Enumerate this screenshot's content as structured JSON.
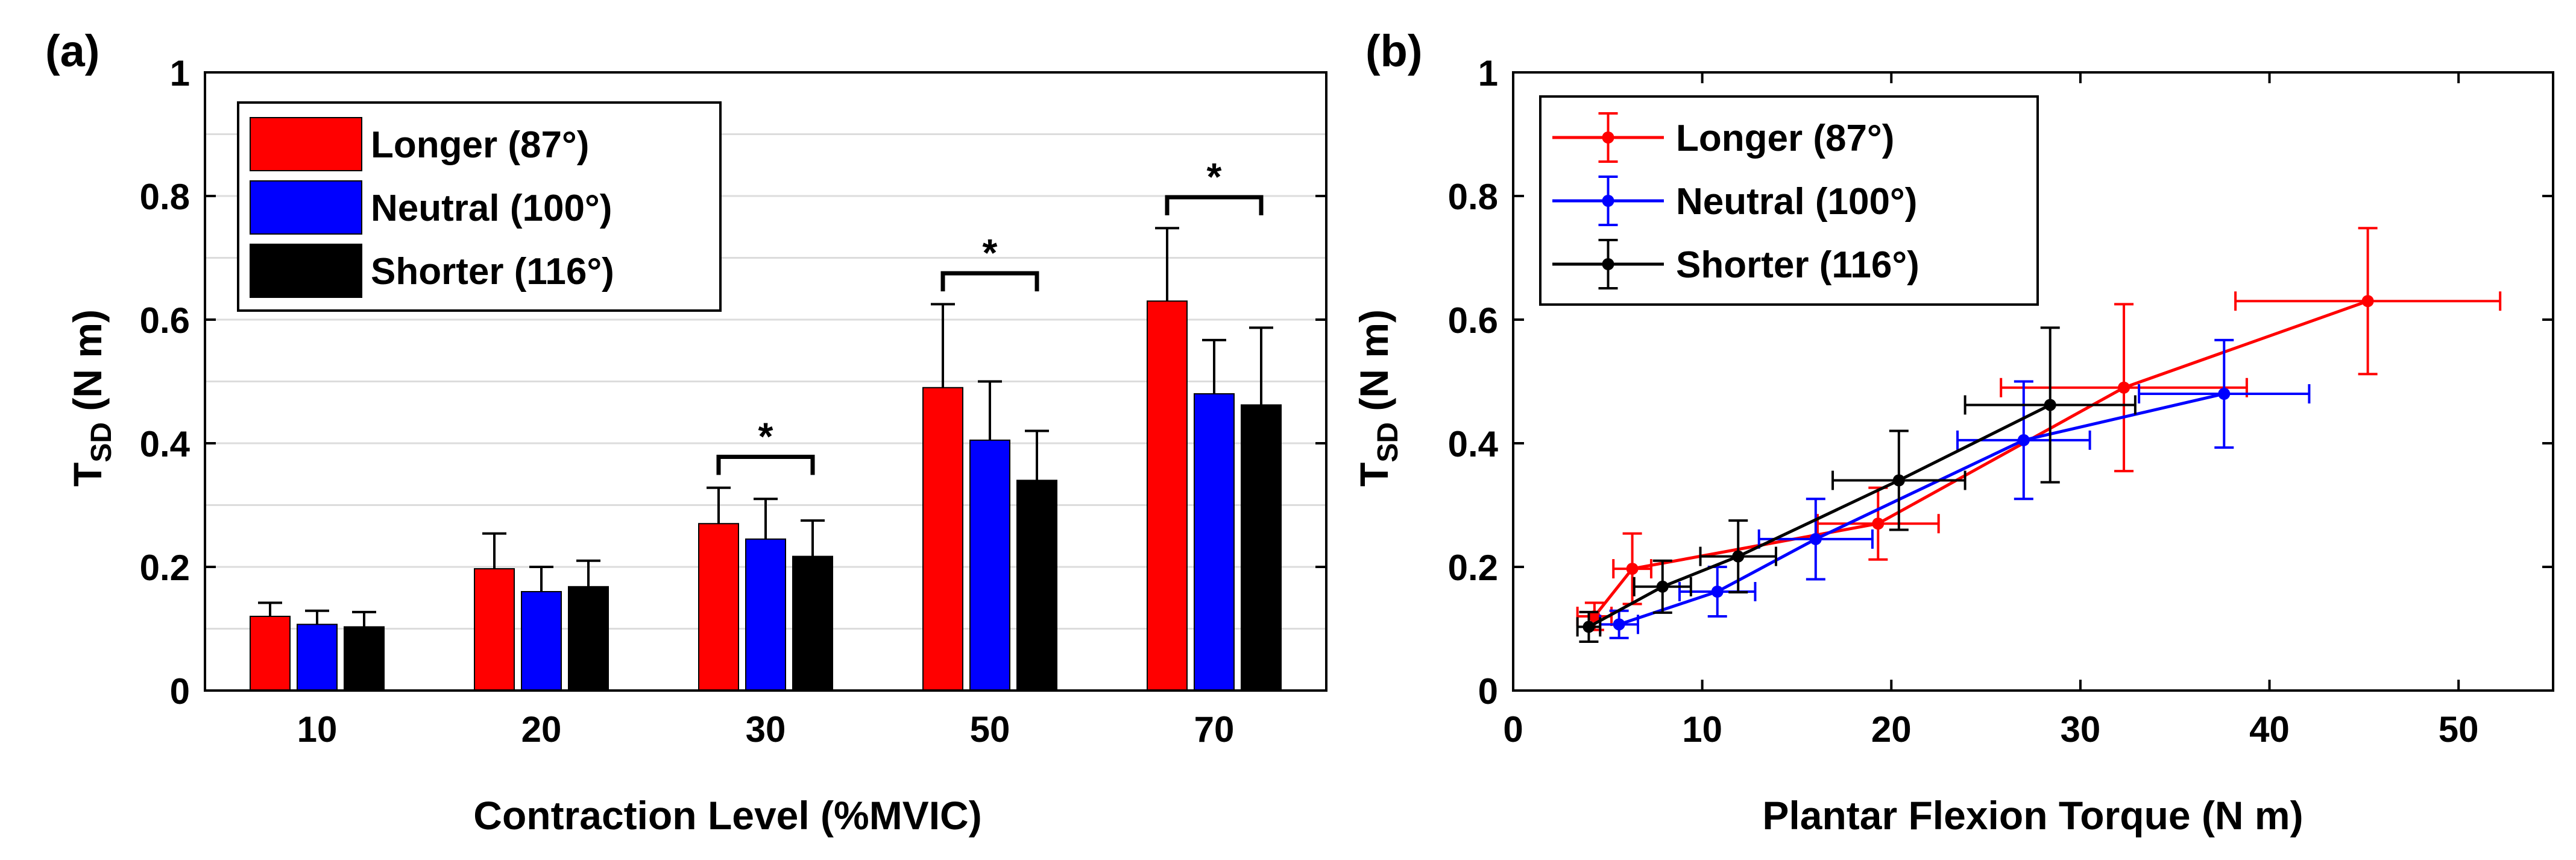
{
  "colors": {
    "longer": "#ff0000",
    "neutral": "#0000ff",
    "shorter": "#000000",
    "grid": "#dcdcdc"
  },
  "panel_labels": {
    "a": "(a)",
    "b": "(b)"
  },
  "significance_marker": "*",
  "chart_data": [
    {
      "type": "bar",
      "panel": "(a)",
      "title": "",
      "xlabel": "Contraction Level (%MVIC)",
      "ylabel_main": "T",
      "ylabel_sub": "SD",
      "ylabel_unit": " (N m)",
      "ylim": [
        0,
        1
      ],
      "yticks": [
        "0",
        "0.2",
        "0.4",
        "0.6",
        "0.8",
        "1"
      ],
      "grid": "horizontal minor (every 0.1)",
      "legend_position": "top-left",
      "categories": [
        "10",
        "20",
        "30",
        "50",
        "70"
      ],
      "series": [
        {
          "name": "Longer (87°)",
          "key": "longer",
          "values": [
            0.12,
            0.197,
            0.27,
            0.49,
            0.63
          ],
          "errors": [
            0.022,
            0.057,
            0.058,
            0.135,
            0.118
          ]
        },
        {
          "name": "Neutral (100°)",
          "key": "neutral",
          "values": [
            0.107,
            0.16,
            0.245,
            0.405,
            0.48
          ],
          "errors": [
            0.022,
            0.04,
            0.065,
            0.095,
            0.087
          ]
        },
        {
          "name": "Shorter (116°)",
          "key": "shorter",
          "values": [
            0.103,
            0.168,
            0.217,
            0.34,
            0.462
          ],
          "errors": [
            0.024,
            0.042,
            0.058,
            0.08,
            0.125
          ]
        }
      ],
      "significance": [
        {
          "category": "30",
          "from": "longer",
          "to": "shorter",
          "label": "*"
        },
        {
          "category": "50",
          "from": "longer",
          "to": "shorter",
          "label": "*"
        },
        {
          "category": "70",
          "from": "longer",
          "to": "shorter",
          "label": "*"
        }
      ]
    },
    {
      "type": "line",
      "panel": "(b)",
      "title": "",
      "xlabel": "Plantar Flexion Torque (N m)",
      "ylabel_main": "T",
      "ylabel_sub": "SD",
      "ylabel_unit": " (N m)",
      "xlim": [
        0,
        55
      ],
      "ylim": [
        0,
        1
      ],
      "xticks": [
        "0",
        "10",
        "20",
        "30",
        "40",
        "50"
      ],
      "yticks": [
        "0",
        "0.2",
        "0.4",
        "0.6",
        "0.8",
        "1"
      ],
      "grid": "off",
      "legend_position": "top-left",
      "series": [
        {
          "name": "Longer (87°)",
          "key": "longer",
          "points": [
            {
              "x": 4.3,
              "y": 0.12,
              "xerr": 0.9,
              "yerr": 0.022
            },
            {
              "x": 6.3,
              "y": 0.197,
              "xerr": 1.0,
              "yerr": 0.057
            },
            {
              "x": 19.3,
              "y": 0.27,
              "xerr": 3.2,
              "yerr": 0.058
            },
            {
              "x": 32.3,
              "y": 0.49,
              "xerr": 6.5,
              "yerr": 0.135
            },
            {
              "x": 45.2,
              "y": 0.63,
              "xerr": 7.0,
              "yerr": 0.118
            }
          ]
        },
        {
          "name": "Neutral (100°)",
          "key": "neutral",
          "points": [
            {
              "x": 5.6,
              "y": 0.107,
              "xerr": 1.0,
              "yerr": 0.022
            },
            {
              "x": 10.8,
              "y": 0.16,
              "xerr": 2.0,
              "yerr": 0.04
            },
            {
              "x": 16.0,
              "y": 0.245,
              "xerr": 3.0,
              "yerr": 0.065
            },
            {
              "x": 27.0,
              "y": 0.405,
              "xerr": 3.5,
              "yerr": 0.095
            },
            {
              "x": 37.6,
              "y": 0.48,
              "xerr": 4.5,
              "yerr": 0.087
            }
          ]
        },
        {
          "name": "Shorter (116°)",
          "key": "shorter",
          "points": [
            {
              "x": 4.0,
              "y": 0.103,
              "xerr": 0.6,
              "yerr": 0.024
            },
            {
              "x": 7.9,
              "y": 0.168,
              "xerr": 1.5,
              "yerr": 0.042
            },
            {
              "x": 11.9,
              "y": 0.217,
              "xerr": 2.0,
              "yerr": 0.058
            },
            {
              "x": 20.4,
              "y": 0.34,
              "xerr": 3.5,
              "yerr": 0.08
            },
            {
              "x": 28.4,
              "y": 0.462,
              "xerr": 4.5,
              "yerr": 0.125
            }
          ]
        }
      ]
    }
  ]
}
